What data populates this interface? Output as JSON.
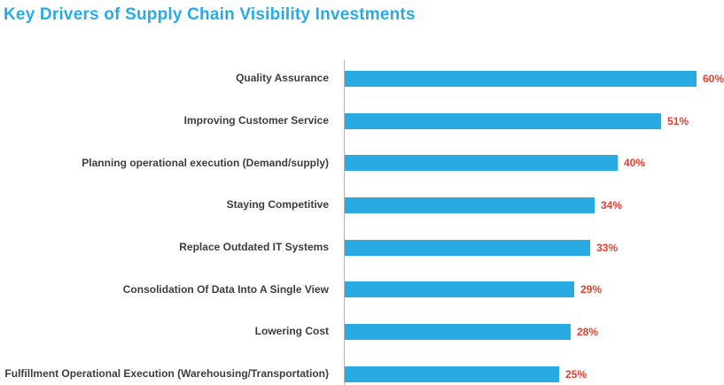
{
  "title": "Key Drivers of Supply Chain Visibility Investments",
  "colors": {
    "title": "#29abe2",
    "bar": "#29abe2",
    "value_label": "#e2402e",
    "category_label": "#3d3d3d",
    "axis": "#b3b3b3",
    "background": "#ffffff"
  },
  "chart_data": {
    "type": "bar",
    "orientation": "horizontal",
    "title": "Key Drivers of Supply Chain Visibility Investments",
    "categories": [
      "Quality Assurance",
      "Improving Customer Service",
      "Planning operational execution (Demand/supply)",
      "Staying Competitive",
      "Replace Outdated IT Systems",
      "Consolidation Of Data Into A Single View",
      "Lowering Cost",
      "Fulfillment Operational Execution (Warehousing/Transportation)"
    ],
    "values": [
      60,
      51,
      40,
      34,
      33,
      29,
      28,
      25
    ],
    "value_suffix": "%",
    "value_labels": [
      "60%",
      "51%",
      "40%",
      "34%",
      "33%",
      "29%",
      "28%",
      "25%"
    ],
    "xlabel": "",
    "ylabel": "",
    "legend": false,
    "grid": false,
    "axis_line": "vertical-left"
  }
}
